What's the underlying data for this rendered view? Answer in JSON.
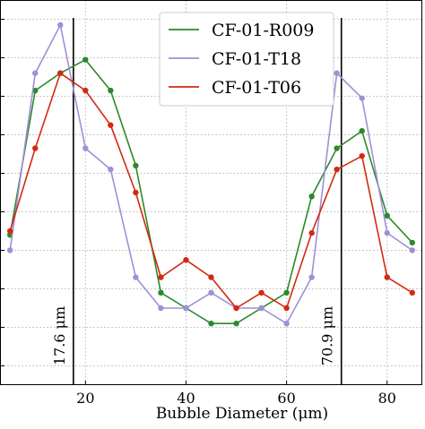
{
  "chart_data": {
    "type": "line",
    "title": "",
    "xlabel": "Bubble Diameter (μm)",
    "ylabel": "",
    "xlim": [
      3,
      87
    ],
    "ylim": [
      0,
      20
    ],
    "xticks": [
      20,
      40,
      60,
      80
    ],
    "yticks": [
      1,
      3,
      5,
      7,
      9,
      11,
      13,
      15,
      17,
      19
    ],
    "grid": true,
    "legend_position": "top-center",
    "series": [
      {
        "name": "CF-01-R009",
        "color": "#2a8a2a",
        "x": [
          5,
          10,
          15,
          20,
          25,
          30,
          35,
          40,
          45,
          50,
          55,
          60,
          65,
          70,
          75,
          80,
          85
        ],
        "y": [
          7.8,
          15.3,
          16.2,
          16.9,
          15.3,
          11.4,
          4.8,
          4.0,
          3.2,
          3.2,
          4.0,
          4.8,
          9.8,
          12.3,
          13.2,
          8.8,
          7.4
        ]
      },
      {
        "name": "CF-01-T18",
        "color": "#a18fd6",
        "x": [
          5,
          10,
          15,
          20,
          25,
          30,
          35,
          40,
          45,
          50,
          55,
          60,
          65,
          70,
          75,
          80,
          85
        ],
        "y": [
          7.0,
          16.2,
          18.7,
          12.3,
          11.2,
          5.6,
          4.0,
          4.0,
          4.8,
          4.0,
          4.0,
          3.2,
          5.6,
          16.2,
          14.9,
          7.9,
          7.0
        ]
      },
      {
        "name": "CF-01-T06",
        "color": "#d22a12",
        "x": [
          5,
          10,
          15,
          20,
          25,
          30,
          35,
          40,
          45,
          50,
          55,
          60,
          65,
          70,
          75,
          80,
          85
        ],
        "y": [
          8.0,
          12.3,
          16.2,
          15.3,
          13.5,
          10.0,
          5.6,
          6.5,
          5.6,
          4.0,
          4.8,
          4.0,
          7.9,
          11.2,
          11.9,
          5.6,
          4.8
        ]
      }
    ],
    "annotations": [
      {
        "x": 17.6,
        "label": "17.6 μm"
      },
      {
        "x": 70.9,
        "label": "70.9 μm"
      }
    ]
  }
}
